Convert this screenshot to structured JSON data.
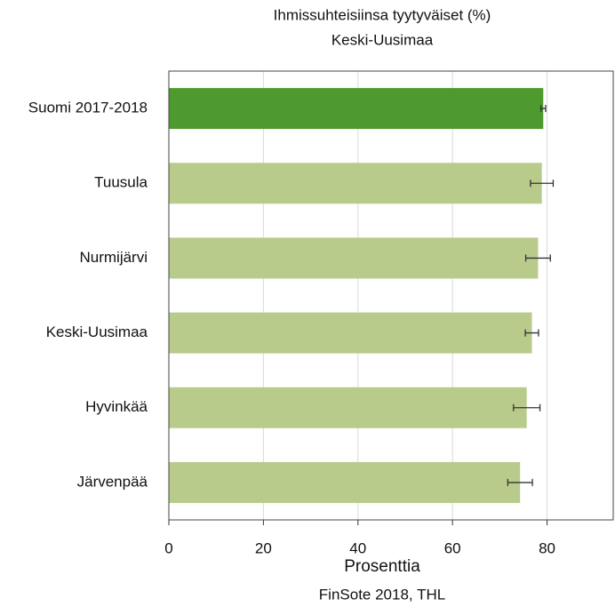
{
  "chart_data": {
    "type": "hbar",
    "title": "Ihmissuhteisiinsa tyytyväiset (%)",
    "subtitle": "Keski-Uusimaa",
    "xlabel": "Prosenttia",
    "source": "FinSote 2018, THL",
    "categories": [
      "Suomi 2017-2018",
      "Tuusula",
      "Nurmijärvi",
      "Keski-Uusimaa",
      "Hyvinkää",
      "Järvenpää"
    ],
    "values": [
      79.2,
      78.9,
      78.1,
      76.8,
      75.7,
      74.3
    ],
    "errors": [
      0.5,
      2.4,
      2.6,
      1.4,
      2.8,
      2.6
    ],
    "colors": [
      "#4f9a2f",
      "#b8cb8b",
      "#b8cb8b",
      "#b8cb8b",
      "#b8cb8b",
      "#b8cb8b"
    ],
    "xlim": [
      0,
      94
    ],
    "xticks": [
      0,
      20,
      40,
      60,
      80
    ],
    "grid": true
  }
}
